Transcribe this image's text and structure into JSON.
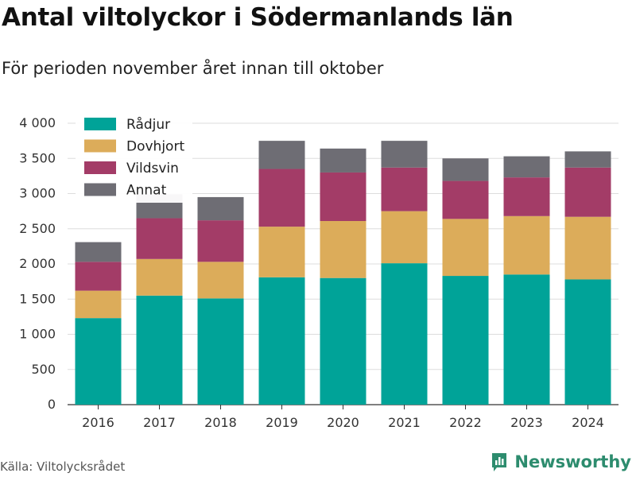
{
  "header": {
    "title": "Antal viltolyckor i Södermanlands län",
    "subtitle": "För perioden november året innan till oktober"
  },
  "footer": {
    "source": "Källa: Viltolycksrådet",
    "brand": "Newsworthy"
  },
  "colors": {
    "Rådjur": "#00a398",
    "Dovhjort": "#dcac5a",
    "Vildsvin": "#a33c67",
    "Annat": "#6e6d74",
    "grid": "#dddddd",
    "axis": "#333333",
    "brand": "#2d8c6e"
  },
  "chart_data": {
    "type": "bar",
    "stacked": true,
    "categories": [
      "2016",
      "2017",
      "2018",
      "2019",
      "2020",
      "2021",
      "2022",
      "2023",
      "2024"
    ],
    "series": [
      {
        "name": "Rådjur",
        "values": [
          1230,
          1550,
          1510,
          1810,
          1800,
          2010,
          1830,
          1850,
          1780
        ]
      },
      {
        "name": "Dovhjort",
        "values": [
          390,
          520,
          520,
          720,
          810,
          740,
          810,
          830,
          890
        ]
      },
      {
        "name": "Vildsvin",
        "values": [
          410,
          580,
          590,
          820,
          690,
          620,
          540,
          550,
          700
        ]
      },
      {
        "name": "Annat",
        "values": [
          280,
          340,
          330,
          400,
          340,
          380,
          320,
          300,
          230
        ]
      }
    ],
    "ylim": [
      0,
      4000
    ],
    "yticks": [
      0,
      500,
      1000,
      1500,
      2000,
      2500,
      3000,
      3500,
      4000
    ],
    "ytick_labels": [
      "0",
      "500",
      "1 000",
      "1 500",
      "2 000",
      "2 500",
      "3 000",
      "3 500",
      "4 000"
    ],
    "grid": true,
    "legend_position": "top-left"
  }
}
